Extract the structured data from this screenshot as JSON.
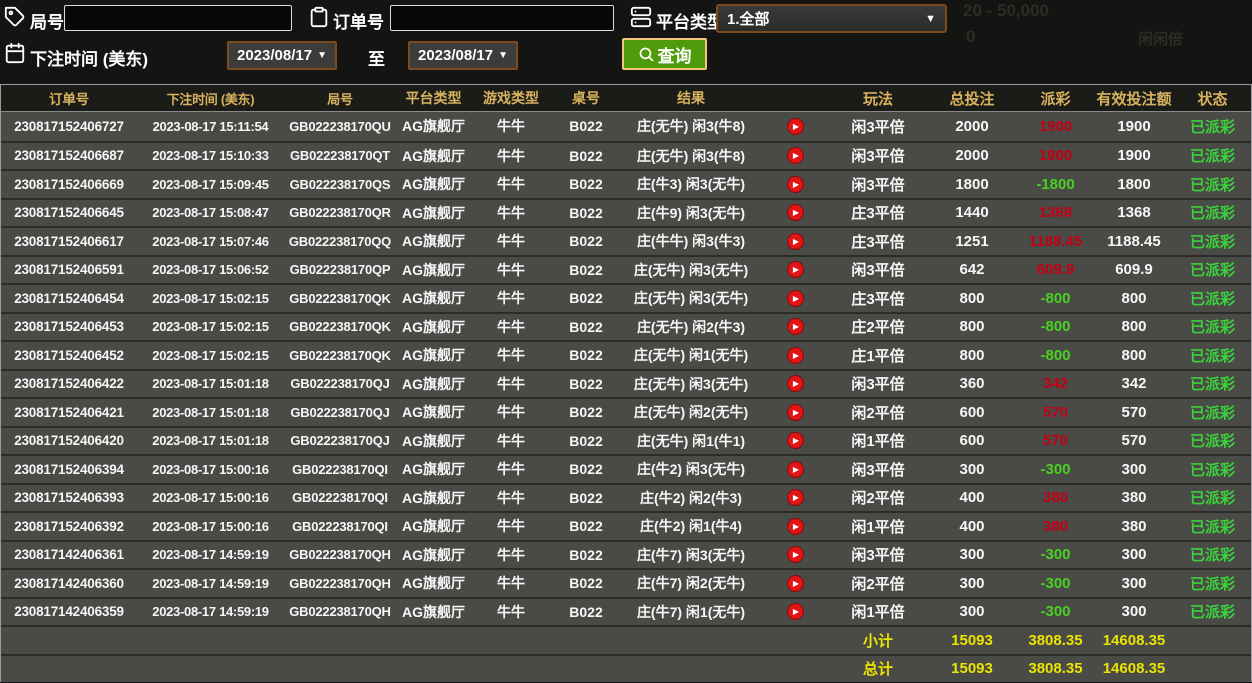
{
  "filters": {
    "round_label": "局号",
    "round_value": "",
    "order_label": "订单号",
    "order_value": "",
    "platform_label": "平台类型",
    "platform_selected": "1.全部",
    "bet_time_label": "下注时间 (美东)",
    "date_from": "2023/08/17",
    "date_to": "2023/08/17",
    "to_label": "至",
    "search_label": "查询"
  },
  "watermark": {
    "line1": "20 - 50,000",
    "line2": "0",
    "line3": "闲闲倍"
  },
  "colors": {
    "header_text": "#d8b25e",
    "payout_positive": "#c50014",
    "payout_negative": "#49d121",
    "status_paid": "#3bd23b",
    "summary_text": "#e9e400",
    "search_button": "#4f9b0c",
    "search_border": "#f0c67c",
    "date_border": "#7c4a1d",
    "play_icon": "#e31414",
    "row_bg": "#4a4a47"
  },
  "table": {
    "columns": [
      {
        "key": "order",
        "label": "订单号"
      },
      {
        "key": "time",
        "label": "下注时间 (美东)"
      },
      {
        "key": "round",
        "label": "局号"
      },
      {
        "key": "platform",
        "label": "平台类型"
      },
      {
        "key": "game",
        "label": "游戏类型"
      },
      {
        "key": "table_no",
        "label": "桌号"
      },
      {
        "key": "result",
        "label": "结果"
      },
      {
        "key": "play",
        "label": ""
      },
      {
        "key": "play_type",
        "label": "玩法"
      },
      {
        "key": "total_bet",
        "label": "总投注"
      },
      {
        "key": "payout",
        "label": "派彩"
      },
      {
        "key": "valid_bet",
        "label": "有效投注额"
      },
      {
        "key": "status",
        "label": "状态"
      }
    ],
    "rows": [
      {
        "order": "230817152406727",
        "time": "2023-08-17 15:11:54",
        "round": "GB022238170QU",
        "platform": "AG旗舰厅",
        "game": "牛牛",
        "table_no": "B022",
        "result": "庄(无牛) 闲3(牛8)",
        "play_type": "闲3平倍",
        "total_bet": "2000",
        "payout": "1900",
        "valid_bet": "1900",
        "status": "已派彩"
      },
      {
        "order": "230817152406687",
        "time": "2023-08-17 15:10:33",
        "round": "GB022238170QT",
        "platform": "AG旗舰厅",
        "game": "牛牛",
        "table_no": "B022",
        "result": "庄(无牛) 闲3(牛8)",
        "play_type": "闲3平倍",
        "total_bet": "2000",
        "payout": "1900",
        "valid_bet": "1900",
        "status": "已派彩"
      },
      {
        "order": "230817152406669",
        "time": "2023-08-17 15:09:45",
        "round": "GB022238170QS",
        "platform": "AG旗舰厅",
        "game": "牛牛",
        "table_no": "B022",
        "result": "庄(牛3) 闲3(无牛)",
        "play_type": "闲3平倍",
        "total_bet": "1800",
        "payout": "-1800",
        "valid_bet": "1800",
        "status": "已派彩"
      },
      {
        "order": "230817152406645",
        "time": "2023-08-17 15:08:47",
        "round": "GB022238170QR",
        "platform": "AG旗舰厅",
        "game": "牛牛",
        "table_no": "B022",
        "result": "庄(牛9) 闲3(无牛)",
        "play_type": "庄3平倍",
        "total_bet": "1440",
        "payout": "1368",
        "valid_bet": "1368",
        "status": "已派彩"
      },
      {
        "order": "230817152406617",
        "time": "2023-08-17 15:07:46",
        "round": "GB022238170QQ",
        "platform": "AG旗舰厅",
        "game": "牛牛",
        "table_no": "B022",
        "result": "庄(牛牛) 闲3(牛3)",
        "play_type": "庄3平倍",
        "total_bet": "1251",
        "payout": "1188.45",
        "valid_bet": "1188.45",
        "status": "已派彩"
      },
      {
        "order": "230817152406591",
        "time": "2023-08-17 15:06:52",
        "round": "GB022238170QP",
        "platform": "AG旗舰厅",
        "game": "牛牛",
        "table_no": "B022",
        "result": "庄(无牛) 闲3(无牛)",
        "play_type": "闲3平倍",
        "total_bet": "642",
        "payout": "609.9",
        "valid_bet": "609.9",
        "status": "已派彩"
      },
      {
        "order": "230817152406454",
        "time": "2023-08-17 15:02:15",
        "round": "GB022238170QK",
        "platform": "AG旗舰厅",
        "game": "牛牛",
        "table_no": "B022",
        "result": "庄(无牛) 闲3(无牛)",
        "play_type": "庄3平倍",
        "total_bet": "800",
        "payout": "-800",
        "valid_bet": "800",
        "status": "已派彩"
      },
      {
        "order": "230817152406453",
        "time": "2023-08-17 15:02:15",
        "round": "GB022238170QK",
        "platform": "AG旗舰厅",
        "game": "牛牛",
        "table_no": "B022",
        "result": "庄(无牛) 闲2(牛3)",
        "play_type": "庄2平倍",
        "total_bet": "800",
        "payout": "-800",
        "valid_bet": "800",
        "status": "已派彩"
      },
      {
        "order": "230817152406452",
        "time": "2023-08-17 15:02:15",
        "round": "GB022238170QK",
        "platform": "AG旗舰厅",
        "game": "牛牛",
        "table_no": "B022",
        "result": "庄(无牛) 闲1(无牛)",
        "play_type": "庄1平倍",
        "total_bet": "800",
        "payout": "-800",
        "valid_bet": "800",
        "status": "已派彩"
      },
      {
        "order": "230817152406422",
        "time": "2023-08-17 15:01:18",
        "round": "GB022238170QJ",
        "platform": "AG旗舰厅",
        "game": "牛牛",
        "table_no": "B022",
        "result": "庄(无牛) 闲3(无牛)",
        "play_type": "闲3平倍",
        "total_bet": "360",
        "payout": "342",
        "valid_bet": "342",
        "status": "已派彩"
      },
      {
        "order": "230817152406421",
        "time": "2023-08-17 15:01:18",
        "round": "GB022238170QJ",
        "platform": "AG旗舰厅",
        "game": "牛牛",
        "table_no": "B022",
        "result": "庄(无牛) 闲2(无牛)",
        "play_type": "闲2平倍",
        "total_bet": "600",
        "payout": "570",
        "valid_bet": "570",
        "status": "已派彩"
      },
      {
        "order": "230817152406420",
        "time": "2023-08-17 15:01:18",
        "round": "GB022238170QJ",
        "platform": "AG旗舰厅",
        "game": "牛牛",
        "table_no": "B022",
        "result": "庄(无牛) 闲1(牛1)",
        "play_type": "闲1平倍",
        "total_bet": "600",
        "payout": "570",
        "valid_bet": "570",
        "status": "已派彩"
      },
      {
        "order": "230817152406394",
        "time": "2023-08-17 15:00:16",
        "round": "GB022238170QI",
        "platform": "AG旗舰厅",
        "game": "牛牛",
        "table_no": "B022",
        "result": "庄(牛2) 闲3(无牛)",
        "play_type": "闲3平倍",
        "total_bet": "300",
        "payout": "-300",
        "valid_bet": "300",
        "status": "已派彩"
      },
      {
        "order": "230817152406393",
        "time": "2023-08-17 15:00:16",
        "round": "GB022238170QI",
        "platform": "AG旗舰厅",
        "game": "牛牛",
        "table_no": "B022",
        "result": "庄(牛2) 闲2(牛3)",
        "play_type": "闲2平倍",
        "total_bet": "400",
        "payout": "380",
        "valid_bet": "380",
        "status": "已派彩"
      },
      {
        "order": "230817152406392",
        "time": "2023-08-17 15:00:16",
        "round": "GB022238170QI",
        "platform": "AG旗舰厅",
        "game": "牛牛",
        "table_no": "B022",
        "result": "庄(牛2) 闲1(牛4)",
        "play_type": "闲1平倍",
        "total_bet": "400",
        "payout": "380",
        "valid_bet": "380",
        "status": "已派彩"
      },
      {
        "order": "230817142406361",
        "time": "2023-08-17 14:59:19",
        "round": "GB022238170QH",
        "platform": "AG旗舰厅",
        "game": "牛牛",
        "table_no": "B022",
        "result": "庄(牛7) 闲3(无牛)",
        "play_type": "闲3平倍",
        "total_bet": "300",
        "payout": "-300",
        "valid_bet": "300",
        "status": "已派彩"
      },
      {
        "order": "230817142406360",
        "time": "2023-08-17 14:59:19",
        "round": "GB022238170QH",
        "platform": "AG旗舰厅",
        "game": "牛牛",
        "table_no": "B022",
        "result": "庄(牛7) 闲2(无牛)",
        "play_type": "闲2平倍",
        "total_bet": "300",
        "payout": "-300",
        "valid_bet": "300",
        "status": "已派彩"
      },
      {
        "order": "230817142406359",
        "time": "2023-08-17 14:59:19",
        "round": "GB022238170QH",
        "platform": "AG旗舰厅",
        "game": "牛牛",
        "table_no": "B022",
        "result": "庄(牛7) 闲1(无牛)",
        "play_type": "闲1平倍",
        "total_bet": "300",
        "payout": "-300",
        "valid_bet": "300",
        "status": "已派彩"
      }
    ],
    "summary": [
      {
        "label": "小计",
        "total_bet": "15093",
        "payout": "3808.35",
        "valid_bet": "14608.35"
      },
      {
        "label": "总计",
        "total_bet": "15093",
        "payout": "3808.35",
        "valid_bet": "14608.35"
      }
    ]
  }
}
